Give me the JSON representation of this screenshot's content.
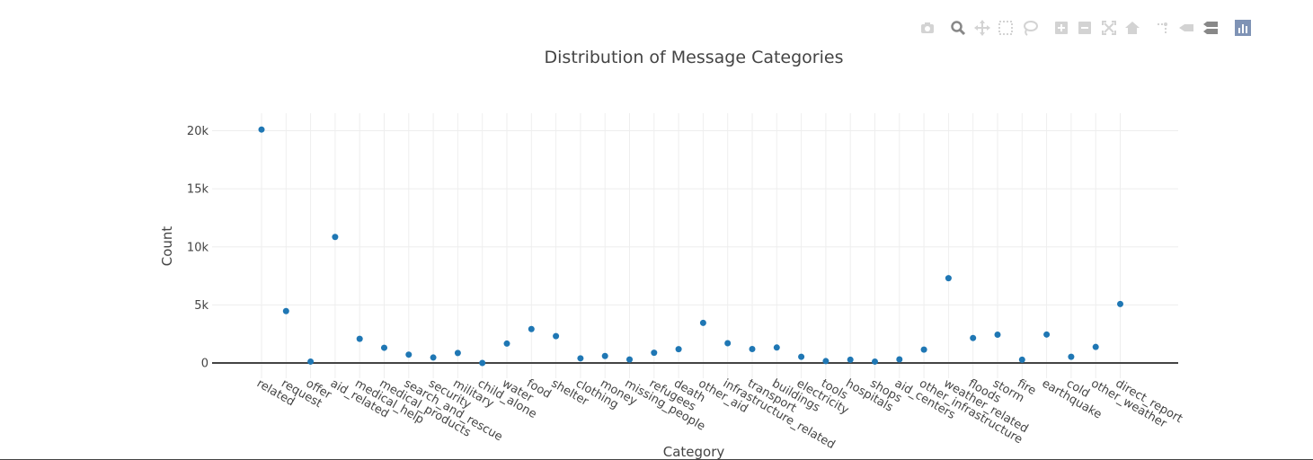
{
  "modebar": {
    "icons": [
      "camera-icon",
      "zoom-icon",
      "pan-icon",
      "box-select-icon",
      "lasso-select-icon",
      "zoom-in-icon",
      "zoom-out-icon",
      "autoscale-icon",
      "reset-axes-icon",
      "spike-lines-icon",
      "hover-closest-icon",
      "hover-compare-icon",
      "plotly-logo-icon"
    ],
    "colors": {
      "icon": "#d3d3d3",
      "active": "#888888",
      "logo": "#7f93b5"
    }
  },
  "chart_data": {
    "type": "scatter",
    "title": "Distribution of Message Categories",
    "xlabel": "Category",
    "ylabel": "Count",
    "ylim": [
      -1600,
      21500
    ],
    "yticks": [
      0,
      5000,
      10000,
      15000,
      20000
    ],
    "yticklabels": [
      "0",
      "5k",
      "10k",
      "15k",
      "20k"
    ],
    "grid": true,
    "marker_color": "#1f77b4",
    "categories": [
      "related",
      "request",
      "offer",
      "aid_related",
      "medical_help",
      "medical_products",
      "search_and_rescue",
      "security",
      "military",
      "child_alone",
      "water",
      "food",
      "shelter",
      "clothing",
      "money",
      "missing_people",
      "refugees",
      "death",
      "other_aid",
      "infrastructure_related",
      "transport",
      "buildings",
      "electricity",
      "tools",
      "hospitals",
      "shops",
      "aid_centers",
      "other_infrastructure",
      "weather_related",
      "floods",
      "storm",
      "fire",
      "earthquake",
      "cold",
      "other_weather",
      "direct_report"
    ],
    "values": [
      20100,
      4470,
      120,
      10850,
      2080,
      1310,
      720,
      470,
      860,
      0,
      1670,
      2920,
      2310,
      400,
      600,
      300,
      880,
      1190,
      3450,
      1700,
      1200,
      1330,
      530,
      160,
      280,
      120,
      310,
      1150,
      7300,
      2150,
      2440,
      280,
      2450,
      530,
      1380,
      5080
    ]
  }
}
